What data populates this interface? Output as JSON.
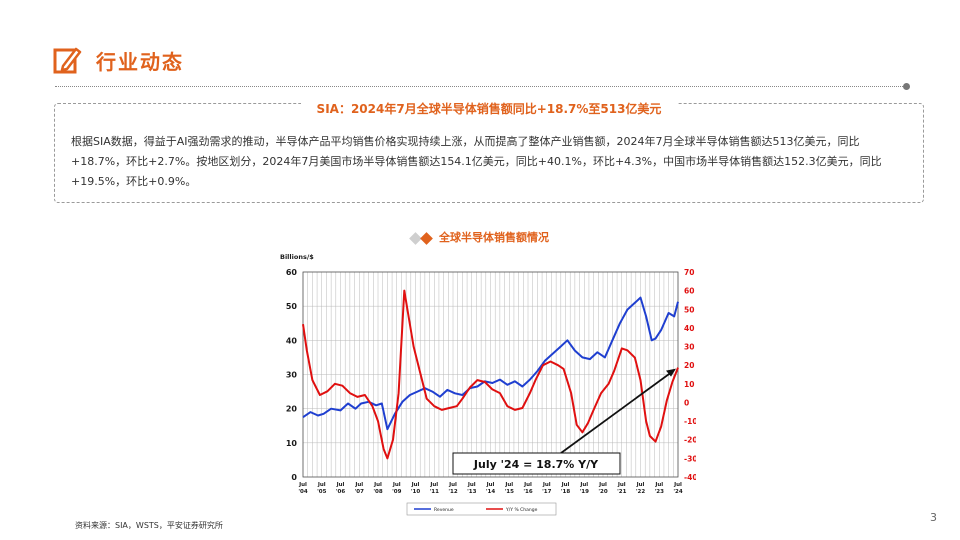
{
  "header": {
    "title": "行业动态",
    "icon": "edit-icon"
  },
  "summary": {
    "title": "SIA：2024年7月全球半导体销售额同比+18.7%至513亿美元",
    "body": "根据SIA数据，得益于AI强劲需求的推动，半导体产品平均销售价格实现持续上涨，从而提高了整体产业销售额，2024年7月全球半导体销售额达513亿美元，同比+18.7%，环比+2.7%。按地区划分，2024年7月美国市场半导体销售额达154.1亿美元，同比+40.1%，环比+4.3%，中国市场半导体销售额达152.3亿美元，同比+19.5%，环比+0.9%。"
  },
  "chart_title": "全球半导体销售额情况",
  "chart_data": {
    "type": "line",
    "title": "",
    "y_left_label": "Billions/$",
    "y_left_lim": [
      0,
      60
    ],
    "y_left_ticks": [
      0,
      10,
      20,
      30,
      40,
      50,
      60
    ],
    "y_right_lim": [
      -40,
      70
    ],
    "y_right_ticks": [
      -40,
      -30,
      -20,
      -10,
      0,
      10,
      20,
      30,
      40,
      50,
      60,
      70
    ],
    "x_tick_labels": [
      [
        "Jul",
        "'04"
      ],
      [
        "Jul",
        "'05"
      ],
      [
        "Jul",
        "'06"
      ],
      [
        "Jul",
        "'07"
      ],
      [
        "Jul",
        "'08"
      ],
      [
        "Jul",
        "'09"
      ],
      [
        "Jul",
        "'10"
      ],
      [
        "Jul",
        "'11"
      ],
      [
        "Jul",
        "'12"
      ],
      [
        "Jul",
        "'13"
      ],
      [
        "Jul",
        "'14"
      ],
      [
        "Jul",
        "'15"
      ],
      [
        "Jul",
        "'16"
      ],
      [
        "Jul",
        "'17"
      ],
      [
        "Jul",
        "'18"
      ],
      [
        "Jul",
        "'19"
      ],
      [
        "Jul",
        "'20"
      ],
      [
        "Jul",
        "'21"
      ],
      [
        "Jul",
        "'22"
      ],
      [
        "Jul",
        "'23"
      ],
      [
        "Jul",
        "'24"
      ]
    ],
    "grid": true,
    "legend_position": "bottom",
    "annotation": "July '24 = 18.7% Y/Y",
    "colors": {
      "revenue": "#1f3fd0",
      "yoy": "#e01010"
    },
    "series": [
      {
        "name": "Revenue",
        "axis": "left",
        "points": [
          [
            2004.5,
            17.5
          ],
          [
            2004.9,
            19
          ],
          [
            2005.3,
            18
          ],
          [
            2005.6,
            18.5
          ],
          [
            2006.0,
            20
          ],
          [
            2006.5,
            19.5
          ],
          [
            2006.9,
            21.5
          ],
          [
            2007.3,
            20
          ],
          [
            2007.6,
            21.5
          ],
          [
            2008.0,
            22
          ],
          [
            2008.4,
            21
          ],
          [
            2008.7,
            21.5
          ],
          [
            2009.0,
            14
          ],
          [
            2009.4,
            18.5
          ],
          [
            2009.8,
            22
          ],
          [
            2010.2,
            24
          ],
          [
            2010.6,
            25
          ],
          [
            2011.0,
            26
          ],
          [
            2011.4,
            25
          ],
          [
            2011.8,
            23.5
          ],
          [
            2012.2,
            25.5
          ],
          [
            2012.6,
            24.5
          ],
          [
            2013.0,
            24
          ],
          [
            2013.4,
            26
          ],
          [
            2013.8,
            26.5
          ],
          [
            2014.2,
            28
          ],
          [
            2014.6,
            27.5
          ],
          [
            2015.0,
            28.5
          ],
          [
            2015.4,
            27
          ],
          [
            2015.8,
            28
          ],
          [
            2016.2,
            26.5
          ],
          [
            2016.6,
            28.5
          ],
          [
            2017.0,
            31
          ],
          [
            2017.4,
            34
          ],
          [
            2017.8,
            36
          ],
          [
            2018.2,
            38
          ],
          [
            2018.6,
            40
          ],
          [
            2019.0,
            37
          ],
          [
            2019.4,
            35
          ],
          [
            2019.8,
            34.5
          ],
          [
            2020.2,
            36.5
          ],
          [
            2020.6,
            35
          ],
          [
            2021.0,
            40
          ],
          [
            2021.4,
            45
          ],
          [
            2021.8,
            49
          ],
          [
            2022.2,
            51
          ],
          [
            2022.5,
            52.5
          ],
          [
            2022.8,
            47
          ],
          [
            2023.1,
            40
          ],
          [
            2023.3,
            40.5
          ],
          [
            2023.6,
            43
          ],
          [
            2024.0,
            48
          ],
          [
            2024.3,
            47
          ],
          [
            2024.5,
            51.3
          ]
        ]
      },
      {
        "name": "Y/Y % Change",
        "axis": "right",
        "points": [
          [
            2004.5,
            42
          ],
          [
            2004.7,
            28
          ],
          [
            2005.0,
            12
          ],
          [
            2005.4,
            4
          ],
          [
            2005.8,
            6
          ],
          [
            2006.2,
            10
          ],
          [
            2006.6,
            9
          ],
          [
            2007.0,
            5
          ],
          [
            2007.4,
            3
          ],
          [
            2007.8,
            4
          ],
          [
            2008.2,
            -2
          ],
          [
            2008.5,
            -10
          ],
          [
            2008.8,
            -25
          ],
          [
            2009.0,
            -30
          ],
          [
            2009.3,
            -20
          ],
          [
            2009.6,
            5
          ],
          [
            2009.9,
            60
          ],
          [
            2010.1,
            48
          ],
          [
            2010.4,
            30
          ],
          [
            2010.8,
            14
          ],
          [
            2011.1,
            2
          ],
          [
            2011.5,
            -2
          ],
          [
            2011.9,
            -4
          ],
          [
            2012.3,
            -3
          ],
          [
            2012.7,
            -2
          ],
          [
            2013.0,
            2
          ],
          [
            2013.4,
            8
          ],
          [
            2013.8,
            12
          ],
          [
            2014.2,
            11
          ],
          [
            2014.6,
            7
          ],
          [
            2015.0,
            5
          ],
          [
            2015.4,
            -2
          ],
          [
            2015.8,
            -4
          ],
          [
            2016.2,
            -3
          ],
          [
            2016.6,
            5
          ],
          [
            2016.9,
            12
          ],
          [
            2017.3,
            20
          ],
          [
            2017.7,
            22
          ],
          [
            2018.1,
            20
          ],
          [
            2018.4,
            18
          ],
          [
            2018.8,
            5
          ],
          [
            2019.1,
            -12
          ],
          [
            2019.4,
            -16
          ],
          [
            2019.7,
            -11
          ],
          [
            2020.0,
            -4
          ],
          [
            2020.4,
            5
          ],
          [
            2020.8,
            10
          ],
          [
            2021.1,
            17
          ],
          [
            2021.5,
            29
          ],
          [
            2021.8,
            28
          ],
          [
            2022.2,
            24
          ],
          [
            2022.5,
            12
          ],
          [
            2022.8,
            -10
          ],
          [
            2023.0,
            -18
          ],
          [
            2023.3,
            -21
          ],
          [
            2023.6,
            -13
          ],
          [
            2023.9,
            1
          ],
          [
            2024.2,
            11
          ],
          [
            2024.5,
            18.7
          ]
        ]
      }
    ]
  },
  "source": "资料来源：SIA，WSTS，平安证券研究所",
  "page_number": "3"
}
